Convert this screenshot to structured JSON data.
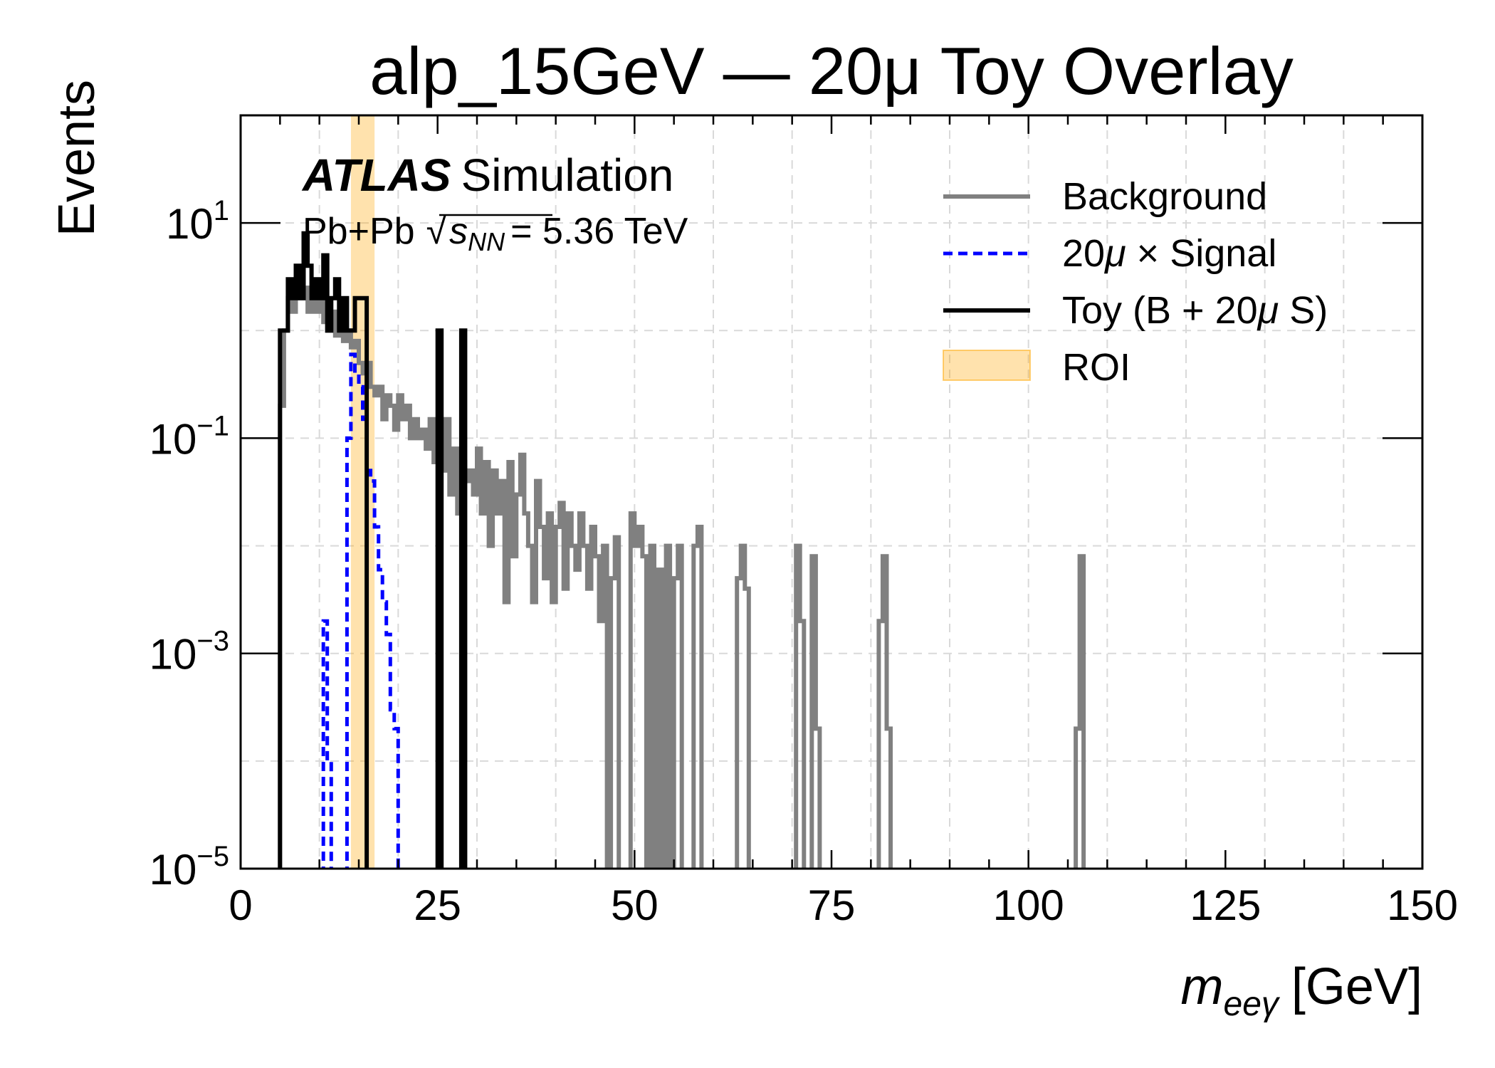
{
  "chart_data": {
    "type": "line",
    "title": "alp_15GeV — 20μ Toy Overlay",
    "xlabel_main": "m",
    "xlabel_sub": "eeγ",
    "xlabel_unit": "[GeV]",
    "ylabel": "Events",
    "xlim": [
      0,
      150
    ],
    "ylim": [
      1e-05,
      100
    ],
    "yscale": "log",
    "grid": true,
    "legend_position": "top-right",
    "x_ticks": [
      {
        "value": 0,
        "label": "0"
      },
      {
        "value": 25,
        "label": "25"
      },
      {
        "value": 50,
        "label": "50"
      },
      {
        "value": 75,
        "label": "75"
      },
      {
        "value": 100,
        "label": "100"
      },
      {
        "value": 125,
        "label": "125"
      },
      {
        "value": 150,
        "label": "150"
      }
    ],
    "y_ticks": [
      {
        "value": 10,
        "base": "10",
        "exp": "1"
      },
      {
        "value": 0.1,
        "base": "10",
        "exp": "−1"
      },
      {
        "value": 0.001,
        "base": "10",
        "exp": "−3"
      },
      {
        "value": 1e-05,
        "base": "10",
        "exp": "−5"
      }
    ],
    "annotation": {
      "experiment": "ATLAS",
      "label": "Simulation",
      "system": "Pb+Pb",
      "energy_symbol": "s",
      "energy_sub": "NN",
      "energy_value": "= 5.36 TeV"
    },
    "roi": {
      "name": "ROI",
      "x_min": 14,
      "x_max": 17,
      "color": "#ffa500"
    },
    "legend": [
      {
        "key": "background",
        "label": "Background"
      },
      {
        "key": "signal",
        "label_pre": "20",
        "label_mu": "μ",
        "label_post": " ×  Signal"
      },
      {
        "key": "toy",
        "label_pre": "Toy (B + 20",
        "label_mu": "μ",
        "label_post": " S)"
      },
      {
        "key": "roi",
        "label": "ROI"
      }
    ],
    "series": [
      {
        "name": "Background",
        "color": "#808080",
        "style": "solid",
        "bin_width": 0.5,
        "points": [
          [
            5,
            0.2
          ],
          [
            5.5,
            1.0
          ],
          [
            6,
            2.0
          ],
          [
            6.5,
            1.5
          ],
          [
            7,
            3.0
          ],
          [
            7.5,
            2.0
          ],
          [
            8,
            2.5
          ],
          [
            8.5,
            1.5
          ],
          [
            9,
            2.0
          ],
          [
            9.5,
            1.5
          ],
          [
            10,
            2.5
          ],
          [
            10.5,
            1.2
          ],
          [
            11,
            1.0
          ],
          [
            11.5,
            1.5
          ],
          [
            12,
            0.9
          ],
          [
            12.5,
            1.2
          ],
          [
            13,
            0.8
          ],
          [
            13.5,
            1.0
          ],
          [
            14,
            0.7
          ],
          [
            14.5,
            0.8
          ],
          [
            15,
            0.5
          ],
          [
            15.5,
            0.4
          ],
          [
            16,
            0.5
          ],
          [
            16.5,
            0.3
          ],
          [
            17,
            0.25
          ],
          [
            17.5,
            0.3
          ],
          [
            18,
            0.15
          ],
          [
            18.5,
            0.25
          ],
          [
            19,
            0.2
          ],
          [
            19.5,
            0.12
          ],
          [
            20,
            0.25
          ],
          [
            20.5,
            0.15
          ],
          [
            21,
            0.2
          ],
          [
            21.5,
            0.1
          ],
          [
            22,
            0.15
          ],
          [
            22.5,
            0.1
          ],
          [
            23,
            0.12
          ],
          [
            23.5,
            0.08
          ],
          [
            24,
            0.15
          ],
          [
            24.5,
            0.06
          ],
          [
            25,
            0.1
          ],
          [
            25.5,
            0.05
          ],
          [
            26,
            0.15
          ],
          [
            26.5,
            0.03
          ],
          [
            27,
            0.08
          ],
          [
            27.5,
            0.02
          ],
          [
            28,
            0.06
          ],
          [
            28.5,
            0.04
          ],
          [
            29,
            0.05
          ],
          [
            29.5,
            0.03
          ],
          [
            30,
            0.08
          ],
          [
            30.5,
            0.02
          ],
          [
            31,
            0.06
          ],
          [
            31.5,
            0.01
          ],
          [
            32,
            0.05
          ],
          [
            32.5,
            0.02
          ],
          [
            33,
            0.04
          ],
          [
            33.5,
            0.003
          ],
          [
            34,
            0.06
          ],
          [
            34.5,
            0.008
          ],
          [
            35,
            0.03
          ],
          [
            35.5,
            0.07
          ],
          [
            36,
            0.02
          ],
          [
            36.5,
            0.01
          ],
          [
            37,
            0.003
          ],
          [
            37.5,
            0.04
          ],
          [
            38,
            0.015
          ],
          [
            38.5,
            0.005
          ],
          [
            39,
            0.02
          ],
          [
            39.5,
            0.003
          ],
          [
            40,
            0.015
          ],
          [
            40.5,
            0.025
          ],
          [
            41,
            0.004
          ],
          [
            41.5,
            0.02
          ],
          [
            42,
            0.01
          ],
          [
            42.5,
            0.006
          ],
          [
            43,
            0.02
          ],
          [
            43.5,
            0.01
          ],
          [
            44,
            0.004
          ],
          [
            44.5,
            0.015
          ],
          [
            45,
            0.008
          ],
          [
            45.5,
            0.002
          ],
          [
            46,
            0.01
          ],
          [
            47,
            0.005
          ],
          [
            47.5,
            0.012
          ],
          [
            49.5,
            0.02
          ],
          [
            50,
            0.01
          ],
          [
            50.5,
            0.015
          ],
          [
            51,
            0.008
          ],
          [
            52,
            0.01
          ],
          [
            53,
            0.006
          ],
          [
            54,
            0.01
          ],
          [
            55,
            0.005
          ],
          [
            55.5,
            0.01
          ],
          [
            57.5,
            0.01
          ],
          [
            58,
            0.015
          ],
          [
            63,
            0.005
          ],
          [
            63.5,
            0.01
          ],
          [
            64,
            0.004
          ],
          [
            70.5,
            0.01
          ],
          [
            71,
            0.002
          ],
          [
            72.5,
            0.008
          ],
          [
            73,
            0.0002
          ],
          [
            81,
            0.002
          ],
          [
            81.5,
            0.008
          ],
          [
            82,
            0.0002
          ],
          [
            106,
            0.0002
          ],
          [
            106.5,
            0.008
          ]
        ]
      },
      {
        "name_pre": "20",
        "name_mu": "μ",
        "name_post": " ×  Signal",
        "color": "#0000ff",
        "style": "dashed",
        "bin_width": 0.5,
        "points": [
          [
            10.5,
            0.002
          ],
          [
            11,
            0.0001
          ],
          [
            13.5,
            0.1
          ],
          [
            14,
            0.6
          ],
          [
            14.5,
            0.4
          ],
          [
            15,
            0.3
          ],
          [
            15.5,
            0.15
          ],
          [
            16,
            0.05
          ],
          [
            16.5,
            0.04
          ],
          [
            17,
            0.015
          ],
          [
            17.5,
            0.006
          ],
          [
            18,
            0.003
          ],
          [
            18.5,
            0.0015
          ],
          [
            19,
            0.0003
          ],
          [
            19.5,
            0.0002
          ]
        ]
      },
      {
        "name_pre": "Toy (B + 20",
        "name_mu": "μ",
        "name_post": " S)",
        "color": "#000000",
        "style": "solid",
        "bin_width": 0.5,
        "points": [
          [
            5,
            1
          ],
          [
            5.5,
            1
          ],
          [
            6,
            3
          ],
          [
            6.5,
            2
          ],
          [
            7,
            4
          ],
          [
            7.5,
            2
          ],
          [
            8,
            8
          ],
          [
            8.5,
            4
          ],
          [
            9,
            2
          ],
          [
            9.5,
            3
          ],
          [
            10,
            2
          ],
          [
            10.5,
            5
          ],
          [
            11,
            1
          ],
          [
            11.5,
            2
          ],
          [
            12,
            3
          ],
          [
            12.5,
            1
          ],
          [
            13,
            2
          ],
          [
            13.5,
            1
          ],
          [
            14,
            1
          ],
          [
            14.5,
            2
          ],
          [
            15,
            2
          ],
          [
            15.5,
            2
          ],
          [
            25,
            1
          ],
          [
            28,
            1
          ]
        ]
      }
    ]
  }
}
